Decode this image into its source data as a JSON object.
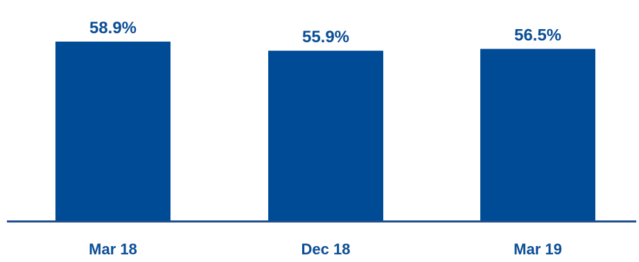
{
  "chart_data": {
    "type": "bar",
    "categories": [
      "Mar 18",
      "Dec 18",
      "Mar 19"
    ],
    "values": [
      58.9,
      55.9,
      56.5
    ],
    "data_labels": [
      "58.9%",
      "55.9%",
      "56.5%"
    ],
    "title": "",
    "xlabel": "",
    "ylabel": "",
    "ylim": [
      0,
      65
    ],
    "grid": false,
    "legend": "none"
  },
  "colors": {
    "bar": "#004B96",
    "label_text": "#0B4E96",
    "axis": "#1F4E8C",
    "background": "#FFFFFF"
  }
}
